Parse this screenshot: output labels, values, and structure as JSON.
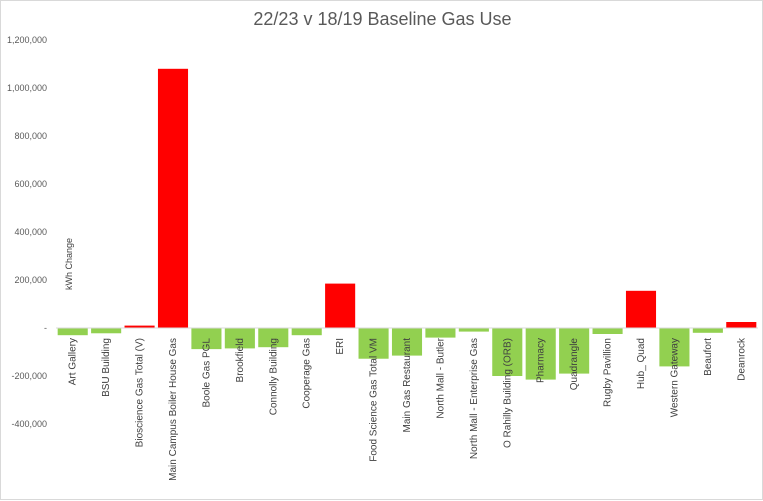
{
  "chart_data": {
    "type": "bar",
    "title": "22/23 v 18/19 Baseline Gas Use",
    "ylabel": "kWh Change",
    "ylim": [
      -400000,
      1200000
    ],
    "yticks": [
      1200000,
      1000000,
      800000,
      600000,
      400000,
      200000,
      0,
      -200000,
      -400000
    ],
    "ytick_labels": [
      "1,200,000",
      "1,000,000",
      "800,000",
      "600,000",
      "400,000",
      "200,000",
      "-",
      "-200,000",
      "-400,000"
    ],
    "grid": false,
    "positive_color": "#ff0000",
    "negative_color": "#92d050",
    "categories": [
      "Art Gallery",
      "BSU Building",
      "Bioscience Gas Total (V)",
      "Main Campus Boiler House Gas",
      "Boole  Gas PGL",
      "Brookfield",
      "Connolly Building",
      "Cooperage Gas",
      "ERI",
      "Food Science Gas Total VM",
      "Main Gas Restaurant",
      "North Mall - Butler",
      "North Mall - Enterprise  Gas",
      "O Rahilly Building (ORB)",
      "Pharmacy",
      "Quadrangle",
      "Rugby Pavillion",
      "Hub_ Quad",
      "Western Gateway",
      "Beaufort",
      "Deanrock"
    ],
    "values": [
      -30000,
      -22000,
      10000,
      1080000,
      -88000,
      -85000,
      -80000,
      -30000,
      185000,
      -128000,
      -115000,
      -40000,
      -15000,
      -200000,
      -215000,
      -190000,
      -25000,
      155000,
      -160000,
      -20000,
      25000
    ]
  }
}
